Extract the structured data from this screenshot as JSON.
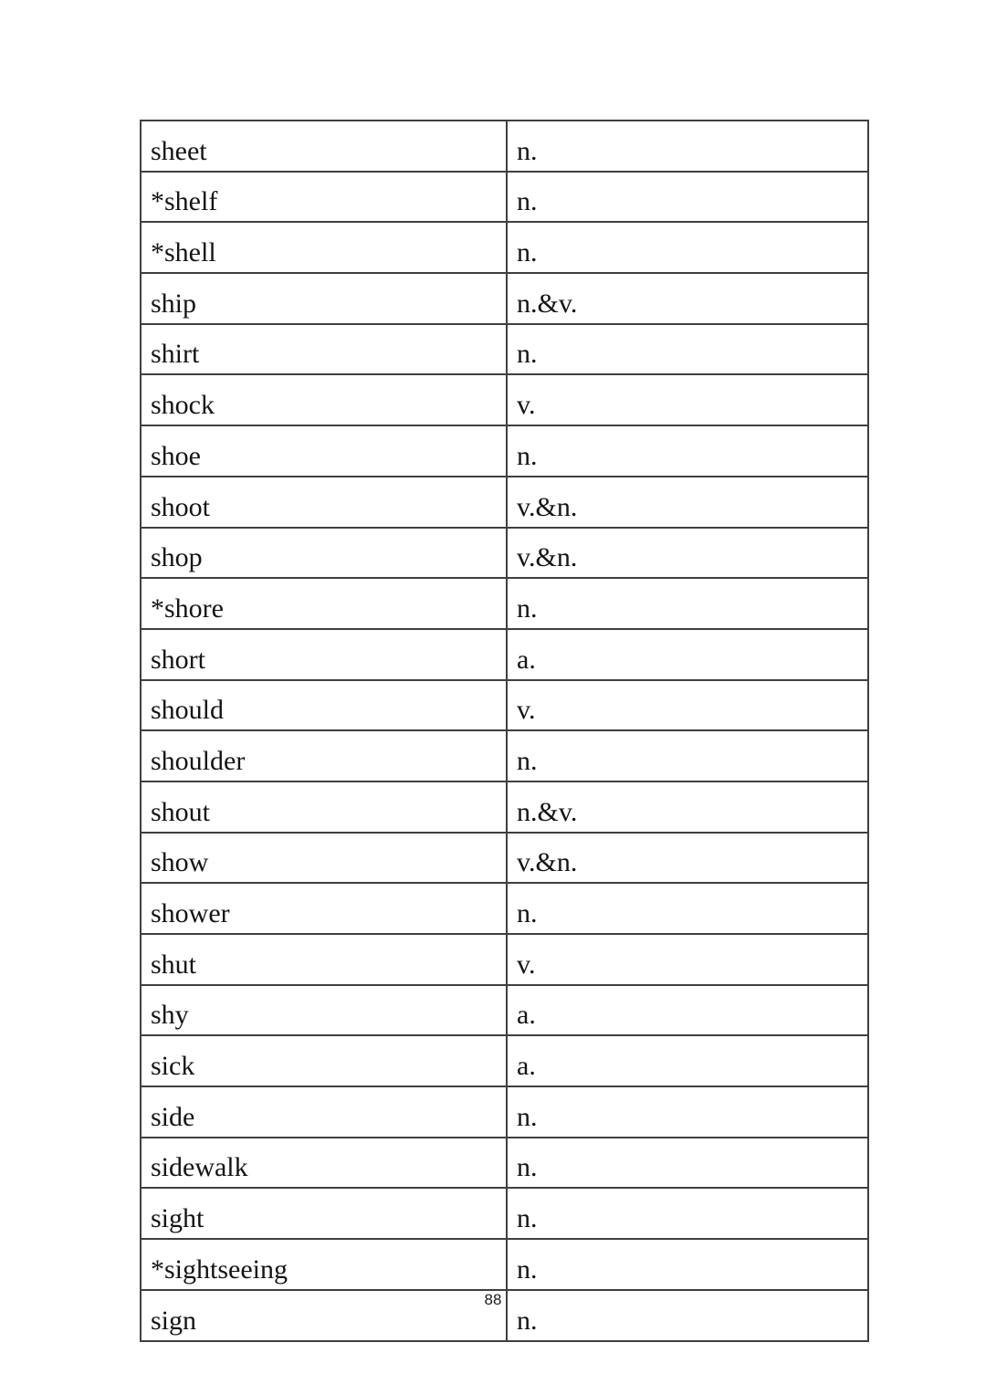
{
  "page": {
    "number": "88"
  },
  "table": {
    "columns": [
      "word",
      "part_of_speech"
    ],
    "rows": [
      {
        "word": "sheet",
        "pos": "n."
      },
      {
        "word": "*shelf",
        "pos": "n."
      },
      {
        "word": "*shell",
        "pos": "n."
      },
      {
        "word": "ship",
        "pos": "n.&v."
      },
      {
        "word": "shirt",
        "pos": "n."
      },
      {
        "word": "shock",
        "pos": "v."
      },
      {
        "word": "shoe",
        "pos": "n."
      },
      {
        "word": "shoot",
        "pos": "v.&n."
      },
      {
        "word": "shop",
        "pos": "v.&n."
      },
      {
        "word": "*shore",
        "pos": "n."
      },
      {
        "word": "short",
        "pos": "a."
      },
      {
        "word": "should",
        "pos": "v."
      },
      {
        "word": "shoulder",
        "pos": "n."
      },
      {
        "word": "shout",
        "pos": "n.&v."
      },
      {
        "word": "show",
        "pos": "v.&n."
      },
      {
        "word": "shower",
        "pos": "n."
      },
      {
        "word": "shut",
        "pos": "v."
      },
      {
        "word": "shy",
        "pos": "a."
      },
      {
        "word": "sick",
        "pos": "a."
      },
      {
        "word": "side",
        "pos": "n."
      },
      {
        "word": "sidewalk",
        "pos": "n."
      },
      {
        "word": "sight",
        "pos": "n."
      },
      {
        "word": "*sightseeing",
        "pos": "n."
      },
      {
        "word": "sign",
        "pos": "n."
      }
    ]
  },
  "colors": {
    "border": "#3f3f3f",
    "text": "#141414",
    "background": "#ffffff"
  }
}
